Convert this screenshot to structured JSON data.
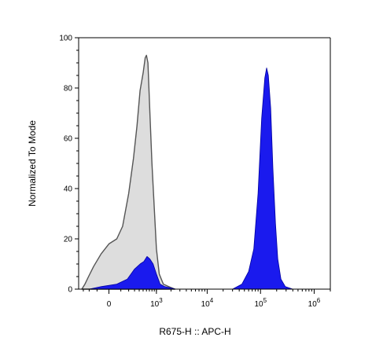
{
  "chart_data": {
    "type": "area",
    "xlabel": "R675-H :: APC-H",
    "ylabel": "Normalized To Mode",
    "x_scale": "biexponential",
    "xlim": [
      -400,
      2000000
    ],
    "ylim": [
      0,
      100
    ],
    "grid": false,
    "y_ticks": [
      0,
      20,
      40,
      60,
      80,
      100
    ],
    "x_ticks": [
      {
        "value": 0,
        "base": "0",
        "exp": ""
      },
      {
        "value": 1000,
        "base": "10",
        "exp": "3"
      },
      {
        "value": 10000,
        "base": "10",
        "exp": "4"
      },
      {
        "value": 100000,
        "base": "10",
        "exp": "5"
      },
      {
        "value": 1000000,
        "base": "10",
        "exp": "6"
      }
    ],
    "series": [
      {
        "style": "gray-outline",
        "fill": "#d9d9d9",
        "stroke": "#555555",
        "points": [
          [
            -330,
            0
          ],
          [
            -270,
            2
          ],
          [
            -210,
            5
          ],
          [
            -140,
            9
          ],
          [
            -60,
            14
          ],
          [
            0,
            18
          ],
          [
            60,
            20
          ],
          [
            120,
            25
          ],
          [
            200,
            38
          ],
          [
            280,
            52
          ],
          [
            350,
            65
          ],
          [
            420,
            79
          ],
          [
            500,
            86
          ],
          [
            560,
            92
          ],
          [
            600,
            93
          ],
          [
            650,
            90
          ],
          [
            720,
            70
          ],
          [
            800,
            50
          ],
          [
            900,
            32
          ],
          [
            1000,
            16
          ],
          [
            1150,
            6
          ],
          [
            1400,
            2
          ],
          [
            1800,
            1
          ],
          [
            2400,
            0
          ]
        ]
      },
      {
        "style": "blue-filled",
        "fill": "#1a1aee",
        "stroke": "#0000a0",
        "points": [
          [
            -200,
            0
          ],
          [
            -60,
            1
          ],
          [
            60,
            2
          ],
          [
            180,
            4
          ],
          [
            300,
            8
          ],
          [
            420,
            10
          ],
          [
            520,
            11
          ],
          [
            620,
            13
          ],
          [
            720,
            12
          ],
          [
            850,
            10
          ],
          [
            1000,
            6
          ],
          [
            1200,
            2
          ],
          [
            1500,
            1
          ],
          [
            2500,
            0
          ],
          [
            5000,
            0
          ],
          [
            30000,
            0
          ],
          [
            45000,
            2
          ],
          [
            60000,
            7
          ],
          [
            75000,
            16
          ],
          [
            90000,
            38
          ],
          [
            105000,
            68
          ],
          [
            120000,
            84
          ],
          [
            130000,
            88
          ],
          [
            140000,
            85
          ],
          [
            155000,
            72
          ],
          [
            170000,
            48
          ],
          [
            190000,
            26
          ],
          [
            210000,
            12
          ],
          [
            240000,
            4
          ],
          [
            290000,
            1
          ],
          [
            400000,
            0
          ]
        ]
      }
    ]
  }
}
